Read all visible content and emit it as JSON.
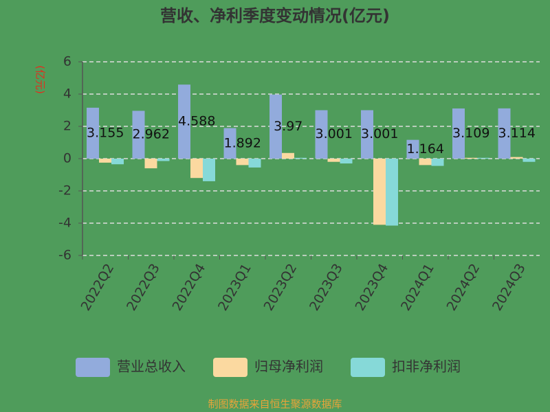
{
  "chart_data": {
    "type": "bar",
    "title": "营收、净利季度变动情况(亿元)",
    "y_label": "(亿元)",
    "source": "制图数据来自恒生聚源数据库",
    "categories": [
      "2022Q2",
      "2022Q3",
      "2022Q4",
      "2023Q1",
      "2023Q2",
      "2023Q3",
      "2023Q4",
      "2024Q1",
      "2024Q2",
      "2024Q3"
    ],
    "series": [
      {
        "name": "营业总收入",
        "color": "#92abdc",
        "values": [
          3.155,
          2.962,
          4.588,
          1.892,
          3.97,
          3.001,
          3.001,
          1.164,
          3.109,
          3.114
        ]
      },
      {
        "name": "归母净利润",
        "color": "#fbd9a0",
        "values": [
          -0.25,
          -0.6,
          -1.2,
          -0.4,
          0.35,
          -0.2,
          -4.1,
          -0.4,
          0.05,
          0.1
        ]
      },
      {
        "name": "扣非净利润",
        "color": "#86d9d8",
        "values": [
          -0.35,
          -0.15,
          -1.4,
          -0.55,
          0.05,
          -0.3,
          -4.15,
          -0.45,
          0.05,
          -0.2
        ]
      }
    ],
    "label_series": 0,
    "ylim": [
      -6,
      6
    ],
    "yticks": [
      -6,
      -4,
      -2,
      0,
      2,
      4,
      6
    ],
    "grid": true
  }
}
